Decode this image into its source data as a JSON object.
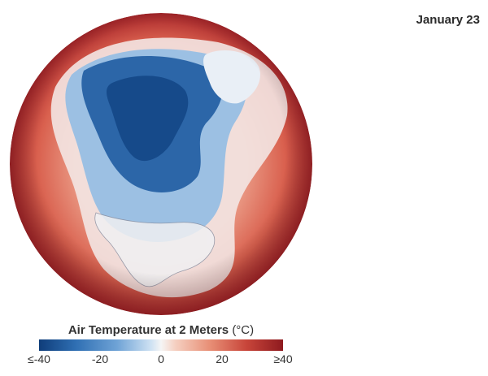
{
  "header": {
    "date": "January 23"
  },
  "map": {
    "colors": {
      "cold": "#1f5a9e",
      "neutral": "#f5f5f5",
      "warm": "#d6604d",
      "hot": "#9e1b24"
    }
  },
  "legend": {
    "title": "Air Temperature at 2 Meters",
    "unit": "(°C)",
    "ticks": [
      "≤-40",
      "-20",
      "0",
      "20",
      "≥40"
    ],
    "range": [
      -40,
      40
    ]
  }
}
